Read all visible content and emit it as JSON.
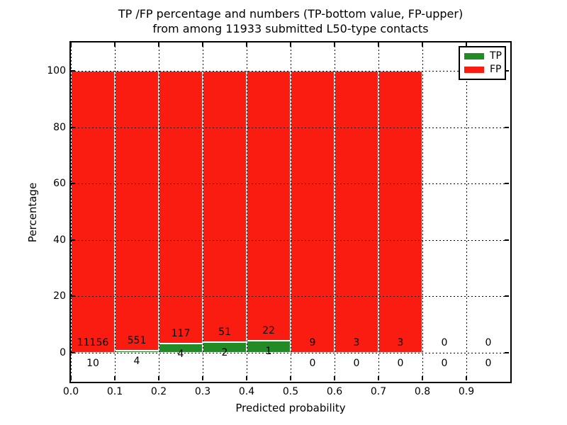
{
  "chart_data": {
    "type": "bar",
    "stacked": true,
    "normalized_to_percent": true,
    "title_line1": "TP /FP percentage and numbers (TP-bottom value, FP-upper)",
    "title_line2": "from among 11933 submitted L50-type contacts",
    "xlabel": "Predicted probability",
    "ylabel": "Percentage",
    "total_contacts": 11933,
    "x_tick_labels": [
      "0.0",
      "0.1",
      "0.2",
      "0.3",
      "0.4",
      "0.5",
      "0.6",
      "0.7",
      "0.8",
      "0.9"
    ],
    "y_tick_values": [
      0,
      20,
      40,
      60,
      80,
      100
    ],
    "y_tick_labels": [
      "0",
      "20",
      "40",
      "60",
      "80",
      "100"
    ],
    "xlim": [
      0.0,
      1.0
    ],
    "bar_width": 0.1,
    "grid": "dotted",
    "legend_position": "upper right",
    "bins": [
      {
        "range": [
          0.0,
          0.1
        ],
        "tp": 10,
        "fp": 11156
      },
      {
        "range": [
          0.1,
          0.2
        ],
        "tp": 4,
        "fp": 551
      },
      {
        "range": [
          0.2,
          0.3
        ],
        "tp": 4,
        "fp": 117
      },
      {
        "range": [
          0.3,
          0.4
        ],
        "tp": 2,
        "fp": 51
      },
      {
        "range": [
          0.4,
          0.5
        ],
        "tp": 1,
        "fp": 22
      },
      {
        "range": [
          0.5,
          0.6
        ],
        "tp": 0,
        "fp": 9
      },
      {
        "range": [
          0.6,
          0.7
        ],
        "tp": 0,
        "fp": 3
      },
      {
        "range": [
          0.7,
          0.8
        ],
        "tp": 0,
        "fp": 3
      },
      {
        "range": [
          0.8,
          0.9
        ],
        "tp": 0,
        "fp": 0
      },
      {
        "range": [
          0.9,
          1.0
        ],
        "tp": 0,
        "fp": 0
      }
    ],
    "legend": [
      {
        "name": "TP",
        "color": "#228b26"
      },
      {
        "name": "FP",
        "color": "#fa1c10"
      }
    ]
  }
}
